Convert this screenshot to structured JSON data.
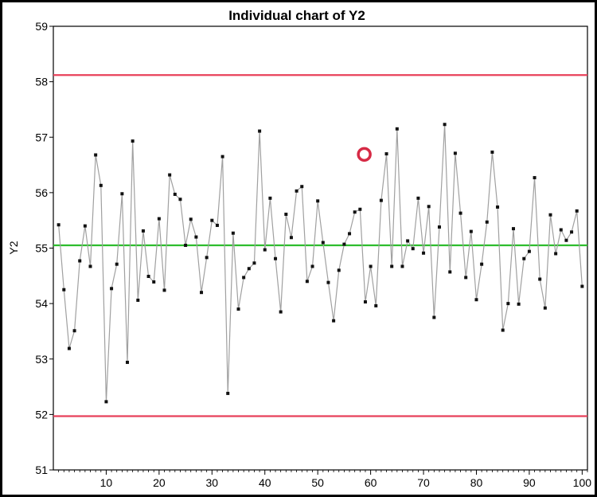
{
  "chart_data": {
    "type": "line",
    "title": "Individual chart of Y2",
    "xlabel": "",
    "ylabel": "Y2",
    "xlim": [
      0,
      101
    ],
    "ylim": [
      51,
      59
    ],
    "x_ticks": [
      10,
      20,
      30,
      40,
      50,
      60,
      70,
      80,
      90,
      100
    ],
    "x_tick_labels": [
      "10",
      "20",
      "30",
      "40",
      "50",
      "60",
      "70",
      "80",
      "90",
      "100"
    ],
    "y_ticks": [
      51,
      52,
      53,
      54,
      55,
      56,
      57,
      58,
      59
    ],
    "y_tick_labels": [
      "51",
      "52",
      "53",
      "54",
      "55",
      "56",
      "57",
      "58",
      "59"
    ],
    "grid": false,
    "reference_lines": [
      {
        "value": 58.12,
        "color": "#e8405a"
      },
      {
        "value": 55.05,
        "color": "#2ebd2e"
      },
      {
        "value": 51.97,
        "color": "#e8405a"
      }
    ],
    "series_color": "#a0a0a0",
    "marker_color": "#111111",
    "series": [
      {
        "values": [
          55.42,
          54.25,
          53.19,
          53.51,
          54.77,
          55.4,
          54.67,
          56.68,
          56.13,
          52.23,
          54.27,
          54.71,
          55.98,
          52.94,
          56.93,
          54.06,
          55.31,
          54.49,
          54.39,
          55.53,
          54.24,
          56.32,
          55.97,
          55.88,
          55.05,
          55.52,
          55.2,
          54.2,
          54.83,
          55.5,
          55.41,
          56.65,
          52.38,
          55.27,
          53.9,
          54.47,
          54.63,
          54.73,
          57.11,
          54.97,
          55.9,
          54.81,
          53.85,
          55.61,
          55.19,
          56.03,
          56.11,
          54.4,
          54.67,
          55.85,
          55.1,
          54.38,
          53.69,
          54.6,
          55.07,
          55.26,
          55.65,
          55.7,
          54.03,
          54.67,
          53.96,
          55.86,
          56.7,
          54.67,
          57.15,
          54.67,
          55.13,
          54.99,
          55.9,
          54.91,
          55.75,
          53.75,
          55.38,
          57.23,
          54.57,
          56.71,
          55.63,
          54.47,
          55.3,
          54.07,
          54.71,
          55.47,
          56.73,
          55.74,
          53.52,
          54.0,
          55.35,
          53.99,
          54.81,
          54.94,
          56.27,
          54.44,
          53.92,
          55.6,
          54.9,
          55.33,
          55.14,
          55.29,
          55.67,
          54.31
        ]
      }
    ],
    "annotation_marker": {
      "x": 58.8,
      "y": 56.69,
      "color": "#d62a45"
    }
  }
}
